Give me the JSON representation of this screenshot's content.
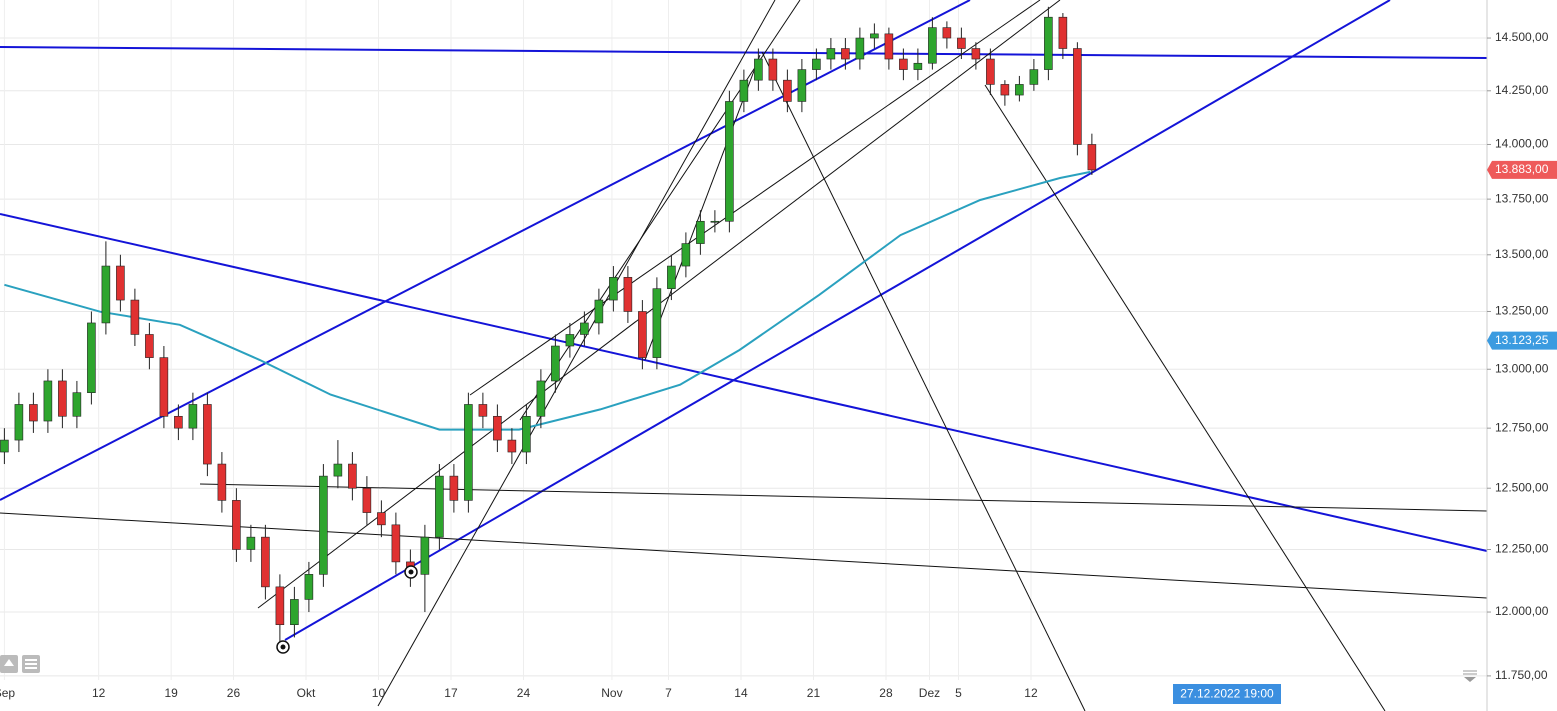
{
  "chart_data": {
    "type": "candlestick",
    "log_scale": true,
    "grid": true,
    "up_color": "#2ea52e",
    "down_color": "#e03131",
    "xlim": [
      -0.303,
      102.25
    ],
    "ylim": [
      11657,
      14683
    ],
    "xticks": [
      {
        "value": 0,
        "label": "Sep"
      },
      {
        "value": 6.5,
        "label": "12"
      },
      {
        "value": 11.5,
        "label": "19"
      },
      {
        "value": 15.8,
        "label": "26"
      },
      {
        "value": 20.8,
        "label": "Okt"
      },
      {
        "value": 25.8,
        "label": "10"
      },
      {
        "value": 30.8,
        "label": "17"
      },
      {
        "value": 35.8,
        "label": "24"
      },
      {
        "value": 41.9,
        "label": "Nov"
      },
      {
        "value": 45.8,
        "label": "7"
      },
      {
        "value": 50.8,
        "label": "14"
      },
      {
        "value": 55.8,
        "label": "21"
      },
      {
        "value": 60.8,
        "label": "28"
      },
      {
        "value": 63.8,
        "label": "Dez"
      },
      {
        "value": 65.8,
        "label": "5"
      },
      {
        "value": 70.8,
        "label": "12"
      }
    ],
    "yticks": [
      {
        "value": 11750,
        "label": "11.750,00"
      },
      {
        "value": 12000,
        "label": "12.000,00"
      },
      {
        "value": 12250,
        "label": "12.250,00"
      },
      {
        "value": 12500,
        "label": "12.500,00"
      },
      {
        "value": 12750,
        "label": "12.750,00"
      },
      {
        "value": 13000,
        "label": "13.000,00"
      },
      {
        "value": 13250,
        "label": "13.250,00"
      },
      {
        "value": 13500,
        "label": "13.500,00"
      },
      {
        "value": 13750,
        "label": "13.750,00"
      },
      {
        "value": 14000,
        "label": "14.000,00"
      },
      {
        "value": 14250,
        "label": "14.250,00"
      },
      {
        "value": 14500,
        "label": "14.500,00"
      }
    ],
    "ohlc": [
      [
        12650,
        12750,
        12600,
        12700
      ],
      [
        12700,
        12900,
        12650,
        12850
      ],
      [
        12850,
        12900,
        12730,
        12780
      ],
      [
        12780,
        13000,
        12730,
        12950
      ],
      [
        12950,
        13000,
        12750,
        12800
      ],
      [
        12800,
        12950,
        12750,
        12900
      ],
      [
        12900,
        13250,
        12850,
        13200
      ],
      [
        13200,
        13560,
        13150,
        13450
      ],
      [
        13450,
        13500,
        13250,
        13300
      ],
      [
        13300,
        13350,
        13100,
        13150
      ],
      [
        13150,
        13200,
        13000,
        13050
      ],
      [
        13050,
        13100,
        12750,
        12800
      ],
      [
        12800,
        12850,
        12700,
        12750
      ],
      [
        12750,
        12900,
        12700,
        12850
      ],
      [
        12850,
        12900,
        12550,
        12600
      ],
      [
        12600,
        12650,
        12400,
        12450
      ],
      [
        12450,
        12500,
        12200,
        12250
      ],
      [
        12250,
        12350,
        12200,
        12300
      ],
      [
        12300,
        12350,
        12050,
        12100
      ],
      [
        12100,
        12150,
        11850,
        11950
      ],
      [
        11950,
        12100,
        11900,
        12050
      ],
      [
        12050,
        12200,
        12000,
        12150
      ],
      [
        12150,
        12600,
        12100,
        12550
      ],
      [
        12550,
        12700,
        12500,
        12600
      ],
      [
        12600,
        12650,
        12450,
        12500
      ],
      [
        12500,
        12550,
        12350,
        12400
      ],
      [
        12400,
        12450,
        12300,
        12350
      ],
      [
        12350,
        12400,
        12150,
        12200
      ],
      [
        12200,
        12250,
        12100,
        12150
      ],
      [
        12150,
        12350,
        12000,
        12300
      ],
      [
        12300,
        12600,
        12250,
        12550
      ],
      [
        12550,
        12600,
        12400,
        12450
      ],
      [
        12450,
        12900,
        12400,
        12850
      ],
      [
        12850,
        12900,
        12750,
        12800
      ],
      [
        12800,
        12850,
        12650,
        12700
      ],
      [
        12700,
        12750,
        12600,
        12650
      ],
      [
        12650,
        12850,
        12600,
        12800
      ],
      [
        12800,
        13000,
        12750,
        12950
      ],
      [
        12950,
        13150,
        12900,
        13100
      ],
      [
        13100,
        13200,
        13050,
        13150
      ],
      [
        13150,
        13250,
        13100,
        13200
      ],
      [
        13200,
        13350,
        13150,
        13300
      ],
      [
        13300,
        13450,
        13250,
        13400
      ],
      [
        13400,
        13450,
        13200,
        13250
      ],
      [
        13250,
        13300,
        13000,
        13050
      ],
      [
        13050,
        13400,
        13000,
        13350
      ],
      [
        13350,
        13500,
        13300,
        13450
      ],
      [
        13450,
        13600,
        13400,
        13550
      ],
      [
        13550,
        13700,
        13500,
        13650
      ],
      [
        13650,
        13700,
        13600,
        13650
      ],
      [
        13650,
        14250,
        13600,
        14200
      ],
      [
        14200,
        14350,
        14150,
        14300
      ],
      [
        14300,
        14450,
        14250,
        14400
      ],
      [
        14400,
        14450,
        14250,
        14300
      ],
      [
        14300,
        14350,
        14150,
        14200
      ],
      [
        14200,
        14400,
        14150,
        14350
      ],
      [
        14350,
        14450,
        14300,
        14400
      ],
      [
        14400,
        14500,
        14350,
        14450
      ],
      [
        14450,
        14500,
        14350,
        14400
      ],
      [
        14400,
        14550,
        14350,
        14500
      ],
      [
        14500,
        14570,
        14450,
        14520
      ],
      [
        14520,
        14550,
        14350,
        14400
      ],
      [
        14400,
        14450,
        14300,
        14350
      ],
      [
        14350,
        14450,
        14300,
        14380
      ],
      [
        14380,
        14600,
        14350,
        14550
      ],
      [
        14550,
        14580,
        14450,
        14500
      ],
      [
        14500,
        14550,
        14400,
        14450
      ],
      [
        14450,
        14480,
        14350,
        14400
      ],
      [
        14400,
        14450,
        14230,
        14280
      ],
      [
        14280,
        14300,
        14180,
        14230
      ],
      [
        14230,
        14320,
        14200,
        14280
      ],
      [
        14280,
        14400,
        14250,
        14350
      ],
      [
        14350,
        14650,
        14300,
        14600
      ],
      [
        14600,
        14620,
        14400,
        14450
      ],
      [
        14450,
        14480,
        13950,
        14000
      ],
      [
        14000,
        14050,
        13860,
        13883
      ]
    ],
    "moving_average": {
      "color": "#2aa1bf",
      "x": [
        0,
        6.6,
        12.1,
        17.6,
        22.5,
        30,
        35.5,
        41.1,
        46.6,
        50.7,
        56.2,
        61.8,
        67.3,
        72.8,
        74.9
      ],
      "values": [
        13367,
        13249,
        13192,
        13040,
        12892,
        12744,
        12744,
        12829,
        12934,
        13083,
        13323,
        13588,
        13746,
        13846,
        13874
      ]
    },
    "price_tags": [
      {
        "value": 13883,
        "label": "13.883,00",
        "color": "#ee5a5a"
      },
      {
        "value": 13123.25,
        "label": "13.123,25",
        "color": "#3b9be0"
      }
    ],
    "crosshair_label": "27.12.2022 19:00"
  }
}
